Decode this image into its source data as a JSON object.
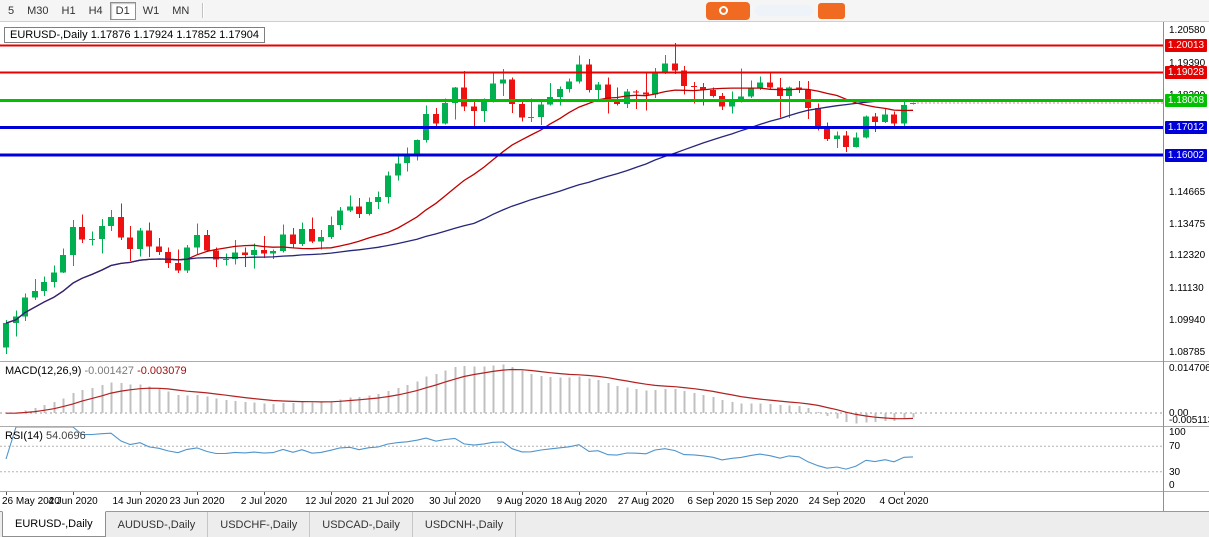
{
  "toolbar": {
    "timeframes": [
      "5",
      "M30",
      "H1",
      "H4",
      "D1",
      "W1",
      "MN"
    ],
    "active": "D1"
  },
  "brand": {
    "primary_color": "#f16a21"
  },
  "main_chart": {
    "symbol_tf": "EURUSD-,Daily"
  },
  "levels": [
    {
      "label": "1.20013",
      "price": 1.20013,
      "color": "#e60000",
      "width": 2
    },
    {
      "label": "1.19028",
      "price": 1.19028,
      "color": "#e60000",
      "width": 2
    },
    {
      "label": "1.18008",
      "price": 1.18008,
      "color": "#00c000",
      "width": 3
    },
    {
      "label": "1.17012",
      "price": 1.17012,
      "color": "#0000d8",
      "width": 3
    },
    {
      "label": "1.16002",
      "price": 1.16002,
      "color": "#0000d8",
      "width": 3
    }
  ],
  "price_axis": {
    "plain": [
      {
        "text": "1.20580",
        "price": 1.2058
      },
      {
        "text": "1.19390",
        "price": 1.1939
      },
      {
        "text": "1.18200",
        "price": 1.182
      },
      {
        "text": "1.14665",
        "price": 1.14665
      },
      {
        "text": "1.13475",
        "price": 1.13475
      },
      {
        "text": "1.12320",
        "price": 1.1232
      },
      {
        "text": "1.11130",
        "price": 1.1113
      },
      {
        "text": "1.09940",
        "price": 1.0994
      },
      {
        "text": "1.08785",
        "price": 1.08785
      }
    ]
  },
  "macd": {
    "label": "MACD(12,26,9)",
    "value_main": "-0.001427",
    "value_signal": "-0.003079",
    "max_label": "0.014706",
    "zero_label": "0.00",
    "min_label": "-0.005113",
    "histogram_color": "#c0c0c0",
    "signal_color": "#b22222"
  },
  "rsi": {
    "label": "RSI(14)",
    "value": "54.0696",
    "line_color": "#4f94cd",
    "dashed_levels": [
      70,
      30
    ],
    "axis_labels": [
      {
        "text": "100",
        "value": 100
      },
      {
        "text": "70",
        "value": 70
      },
      {
        "text": "30",
        "value": 30
      },
      {
        "text": "0",
        "value": 0
      }
    ]
  },
  "date_axis": [
    {
      "text": "26 May 2020",
      "index": 0
    },
    {
      "text": "4 Jun 2020",
      "index": 7
    },
    {
      "text": "14 Jun 2020",
      "index": 14
    },
    {
      "text": "23 Jun 2020",
      "index": 20
    },
    {
      "text": "2 Jul 2020",
      "index": 27
    },
    {
      "text": "12 Jul 2020",
      "index": 34
    },
    {
      "text": "21 Jul 2020",
      "index": 40
    },
    {
      "text": "30 Jul 2020",
      "index": 47
    },
    {
      "text": "9 Aug 2020",
      "index": 54
    },
    {
      "text": "18 Aug 2020",
      "index": 60
    },
    {
      "text": "27 Aug 2020",
      "index": 67
    },
    {
      "text": "6 Sep 2020",
      "index": 74
    },
    {
      "text": "15 Sep 2020",
      "index": 80
    },
    {
      "text": "24 Sep 2020",
      "index": 87
    },
    {
      "text": "4 Oct 2020",
      "index": 94
    }
  ],
  "tabs": {
    "active_index": 0,
    "items": [
      "EURUSD-,Daily",
      "AUDUSD-,Daily",
      "USDCHF-,Daily",
      "USDCAD-,Daily",
      "USDCNH-,Daily"
    ]
  },
  "chart_data": {
    "type": "candlestick",
    "title": "EURUSD-,Daily",
    "current": {
      "open": 1.17876,
      "high": 1.17924,
      "low": 1.17852,
      "close": 1.17904
    },
    "price_range": [
      1.0845,
      1.2088
    ],
    "up_color": "#00b050",
    "down_color": "#ee1111",
    "overlays": [
      {
        "name": "ma-fast",
        "type": "sma",
        "period": 20,
        "color": "#c00000"
      },
      {
        "name": "ma-slow",
        "type": "sma",
        "period": 50,
        "color": "#26267a"
      }
    ],
    "candles": [
      [
        "26 May",
        1.0895,
        1.0996,
        1.087,
        1.0984
      ],
      [
        "27 May",
        1.0984,
        1.1031,
        1.0934,
        1.1008
      ],
      [
        "28 May",
        1.1008,
        1.1093,
        1.0992,
        1.1077
      ],
      [
        "29 May",
        1.1077,
        1.1145,
        1.1068,
        1.1101
      ],
      [
        "1 Jun",
        1.1101,
        1.1154,
        1.1084,
        1.1134
      ],
      [
        "2 Jun",
        1.1134,
        1.1195,
        1.1115,
        1.117
      ],
      [
        "3 Jun",
        1.117,
        1.1257,
        1.1167,
        1.1233
      ],
      [
        "4 Jun",
        1.1233,
        1.1362,
        1.1194,
        1.1337
      ],
      [
        "5 Jun",
        1.1337,
        1.1383,
        1.1278,
        1.129
      ],
      [
        "8 Jun",
        1.129,
        1.132,
        1.1268,
        1.1293
      ],
      [
        "9 Jun",
        1.1293,
        1.1366,
        1.124,
        1.134
      ],
      [
        "10 Jun",
        1.134,
        1.1398,
        1.1322,
        1.1373
      ],
      [
        "11 Jun",
        1.1373,
        1.1422,
        1.1288,
        1.1298
      ],
      [
        "12 Jun",
        1.1298,
        1.134,
        1.1212,
        1.1256
      ],
      [
        "15 Jun",
        1.1256,
        1.1333,
        1.1228,
        1.1323
      ],
      [
        "16 Jun",
        1.1323,
        1.1353,
        1.1227,
        1.1264
      ],
      [
        "17 Jun",
        1.1264,
        1.1296,
        1.1233,
        1.1244
      ],
      [
        "18 Jun",
        1.1244,
        1.1262,
        1.1186,
        1.1205
      ],
      [
        "19 Jun",
        1.1205,
        1.1254,
        1.1168,
        1.1177
      ],
      [
        "22 Jun",
        1.1177,
        1.1271,
        1.1168,
        1.1261
      ],
      [
        "23 Jun",
        1.1261,
        1.1349,
        1.1233,
        1.1307
      ],
      [
        "24 Jun",
        1.1307,
        1.1326,
        1.1245,
        1.1251
      ],
      [
        "25 Jun",
        1.1251,
        1.1262,
        1.119,
        1.1218
      ],
      [
        "26 Jun",
        1.1218,
        1.1239,
        1.1195,
        1.1219
      ],
      [
        "29 Jun",
        1.1219,
        1.1288,
        1.1198,
        1.1242
      ],
      [
        "30 Jun",
        1.1242,
        1.1262,
        1.119,
        1.1234
      ],
      [
        "1 Jul",
        1.1234,
        1.1276,
        1.1184,
        1.1252
      ],
      [
        "2 Jul",
        1.1252,
        1.1303,
        1.1223,
        1.1239
      ],
      [
        "3 Jul",
        1.1239,
        1.1254,
        1.1219,
        1.1248
      ],
      [
        "6 Jul",
        1.1248,
        1.1346,
        1.1242,
        1.1308
      ],
      [
        "7 Jul",
        1.1308,
        1.1333,
        1.1259,
        1.1274
      ],
      [
        "8 Jul",
        1.1274,
        1.1352,
        1.1266,
        1.1329
      ],
      [
        "9 Jul",
        1.1329,
        1.1371,
        1.1277,
        1.1284
      ],
      [
        "10 Jul",
        1.1284,
        1.1325,
        1.1254,
        1.13
      ],
      [
        "13 Jul",
        1.13,
        1.1375,
        1.1292,
        1.1344
      ],
      [
        "14 Jul",
        1.1344,
        1.1409,
        1.1325,
        1.1397
      ],
      [
        "15 Jul",
        1.1397,
        1.1452,
        1.1392,
        1.1411
      ],
      [
        "16 Jul",
        1.1411,
        1.1442,
        1.137,
        1.1384
      ],
      [
        "17 Jul",
        1.1384,
        1.1444,
        1.1378,
        1.1428
      ],
      [
        "20 Jul",
        1.1428,
        1.1467,
        1.1402,
        1.1446
      ],
      [
        "21 Jul",
        1.1446,
        1.154,
        1.1422,
        1.1526
      ],
      [
        "22 Jul",
        1.1526,
        1.1601,
        1.1507,
        1.157
      ],
      [
        "23 Jul",
        1.157,
        1.1627,
        1.154,
        1.1598
      ],
      [
        "24 Jul",
        1.1598,
        1.1658,
        1.1581,
        1.1656
      ],
      [
        "27 Jul",
        1.1656,
        1.1781,
        1.1646,
        1.1751
      ],
      [
        "28 Jul",
        1.1751,
        1.1773,
        1.17,
        1.1716
      ],
      [
        "29 Jul",
        1.1716,
        1.1807,
        1.1713,
        1.1791
      ],
      [
        "30 Jul",
        1.1791,
        1.1849,
        1.1731,
        1.1847
      ],
      [
        "31 Jul",
        1.1847,
        1.1909,
        1.1762,
        1.1778
      ],
      [
        "3 Aug",
        1.1778,
        1.1797,
        1.1696,
        1.1762
      ],
      [
        "4 Aug",
        1.1762,
        1.1807,
        1.1721,
        1.1803
      ],
      [
        "5 Aug",
        1.1803,
        1.1905,
        1.1793,
        1.1863
      ],
      [
        "6 Aug",
        1.1863,
        1.1916,
        1.1817,
        1.1878
      ],
      [
        "7 Aug",
        1.1878,
        1.1884,
        1.1754,
        1.1787
      ],
      [
        "10 Aug",
        1.1787,
        1.1804,
        1.1723,
        1.1738
      ],
      [
        "11 Aug",
        1.1738,
        1.1808,
        1.1722,
        1.174
      ],
      [
        "12 Aug",
        1.174,
        1.1806,
        1.1711,
        1.1785
      ],
      [
        "13 Aug",
        1.1785,
        1.1864,
        1.1782,
        1.1813
      ],
      [
        "14 Aug",
        1.1813,
        1.1851,
        1.1781,
        1.1842
      ],
      [
        "17 Aug",
        1.1842,
        1.1881,
        1.183,
        1.187
      ],
      [
        "18 Aug",
        1.187,
        1.1966,
        1.1863,
        1.1933
      ],
      [
        "19 Aug",
        1.1933,
        1.1952,
        1.1829,
        1.1839
      ],
      [
        "20 Aug",
        1.1839,
        1.1868,
        1.1803,
        1.1858
      ],
      [
        "21 Aug",
        1.1858,
        1.1884,
        1.1753,
        1.1795
      ],
      [
        "24 Aug",
        1.1795,
        1.1848,
        1.1782,
        1.1787
      ],
      [
        "25 Aug",
        1.1787,
        1.1843,
        1.1773,
        1.1834
      ],
      [
        "26 Aug",
        1.1834,
        1.1839,
        1.1769,
        1.183
      ],
      [
        "27 Aug",
        1.183,
        1.1901,
        1.1763,
        1.1822
      ],
      [
        "28 Aug",
        1.1822,
        1.192,
        1.181,
        1.1903
      ],
      [
        "31 Aug",
        1.1903,
        1.1967,
        1.1898,
        1.1936
      ],
      [
        "1 Sep",
        1.1936,
        1.2011,
        1.1898,
        1.1911
      ],
      [
        "2 Sep",
        1.1911,
        1.1927,
        1.1822,
        1.1854
      ],
      [
        "3 Sep",
        1.1854,
        1.1868,
        1.1789,
        1.185
      ],
      [
        "4 Sep",
        1.185,
        1.1865,
        1.1781,
        1.1838
      ],
      [
        "7 Sep",
        1.1838,
        1.1848,
        1.1811,
        1.1816
      ],
      [
        "8 Sep",
        1.1816,
        1.1827,
        1.1766,
        1.1778
      ],
      [
        "9 Sep",
        1.1778,
        1.1834,
        1.1753,
        1.1802
      ],
      [
        "10 Sep",
        1.1802,
        1.1917,
        1.1792,
        1.1815
      ],
      [
        "11 Sep",
        1.1815,
        1.1874,
        1.1809,
        1.1845
      ],
      [
        "14 Sep",
        1.1845,
        1.1888,
        1.1838,
        1.1866
      ],
      [
        "15 Sep",
        1.1866,
        1.19,
        1.1842,
        1.1847
      ],
      [
        "16 Sep",
        1.1847,
        1.1882,
        1.1737,
        1.1816
      ],
      [
        "17 Sep",
        1.1816,
        1.1852,
        1.1736,
        1.1848
      ],
      [
        "18 Sep",
        1.1848,
        1.1871,
        1.1827,
        1.1838
      ],
      [
        "21 Sep",
        1.1838,
        1.1872,
        1.1732,
        1.1772
      ],
      [
        "22 Sep",
        1.1772,
        1.179,
        1.1691,
        1.1707
      ],
      [
        "23 Sep",
        1.1707,
        1.1719,
        1.1651,
        1.1659
      ],
      [
        "24 Sep",
        1.1659,
        1.1686,
        1.1626,
        1.1672
      ],
      [
        "25 Sep",
        1.1672,
        1.1688,
        1.1611,
        1.163
      ],
      [
        "28 Sep",
        1.163,
        1.1683,
        1.1628,
        1.1665
      ],
      [
        "29 Sep",
        1.1665,
        1.1746,
        1.1661,
        1.1742
      ],
      [
        "30 Sep",
        1.1742,
        1.1755,
        1.1684,
        1.1721
      ],
      [
        "1 Oct",
        1.1721,
        1.177,
        1.1717,
        1.1748
      ],
      [
        "2 Oct",
        1.1748,
        1.1759,
        1.1695,
        1.1715
      ],
      [
        "5 Oct",
        1.1715,
        1.1798,
        1.1705,
        1.1784
      ],
      [
        "6 Oct",
        1.17876,
        1.17924,
        1.17852,
        1.17904
      ]
    ]
  }
}
